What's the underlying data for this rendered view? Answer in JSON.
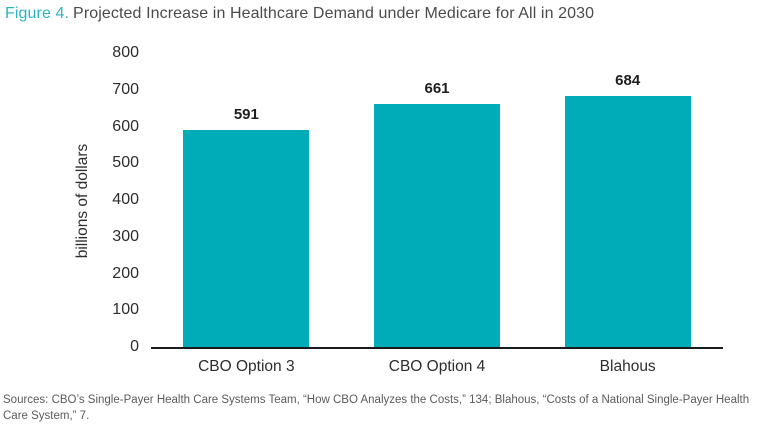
{
  "title": {
    "prefix": "Figure 4.",
    "text": "Projected Increase in Healthcare Demand under Medicare for All in 2030"
  },
  "chart_data": {
    "type": "bar",
    "title": "Projected Increase in Healthcare Demand under Medicare for All in 2030",
    "categories": [
      "CBO Option 3",
      "CBO Option 4",
      "Blahous"
    ],
    "values": [
      591,
      661,
      684
    ],
    "data_labels": [
      "591",
      "661",
      "684"
    ],
    "xlabel": "",
    "ylabel": "billions of dollars",
    "ylim": [
      0,
      800
    ],
    "yticks": [
      0,
      100,
      200,
      300,
      400,
      500,
      600,
      700,
      800
    ],
    "grid": false,
    "legend": "none",
    "bar_color": "#00acb8"
  },
  "source": "Sources: CBO’s Single-Payer Health Care Systems Team, “How CBO Analyzes the Costs,” 134; Blahous, “Costs of a National Single-Payer Health Care System,” 7.",
  "colors": {
    "bar_teal": "#00acb8",
    "title_accent": "#2fb4bd",
    "title_text": "#4b4b4d",
    "axis_text": "#2d2d2f",
    "axis_line": "#1a1a1a",
    "source_text": "#5b5b5d"
  }
}
